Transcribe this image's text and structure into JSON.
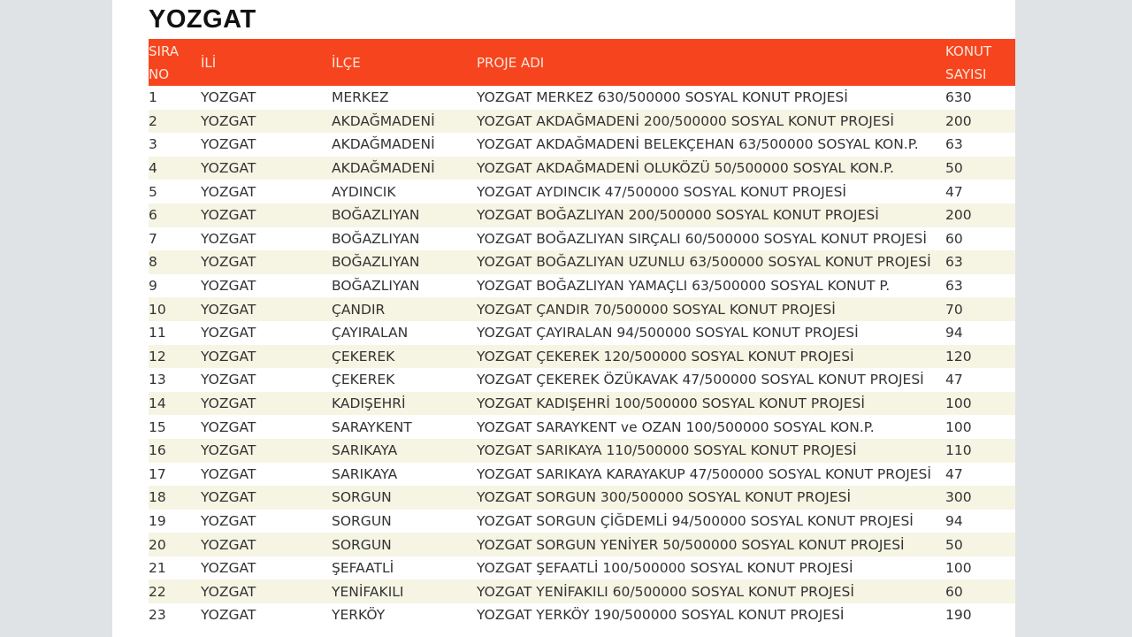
{
  "title": "YOZGAT",
  "colors": {
    "header_bg": "#f6451e",
    "stripe": "#f6f5e4"
  },
  "headers": [
    "SIRA NO",
    "İLİ",
    "İLÇE",
    "PROJE ADI",
    "KONUT SAYISI"
  ],
  "rows": [
    [
      "1",
      "YOZGAT",
      "MERKEZ",
      "YOZGAT MERKEZ 630/500000 SOSYAL KONUT PROJESİ",
      "630"
    ],
    [
      "2",
      "YOZGAT",
      "AKDAĞMADENİ",
      "YOZGAT AKDAĞMADENİ 200/500000 SOSYAL KONUT PROJESİ",
      "200"
    ],
    [
      "3",
      "YOZGAT",
      "AKDAĞMADENİ",
      "YOZGAT AKDAĞMADENİ BELEKÇEHAN 63/500000 SOSYAL KON.P.",
      "63"
    ],
    [
      "4",
      "YOZGAT",
      "AKDAĞMADENİ",
      "YOZGAT AKDAĞMADENİ OLUKÖZÜ 50/500000 SOSYAL KON.P.",
      "50"
    ],
    [
      "5",
      "YOZGAT",
      "AYDINCIK",
      "YOZGAT AYDINCIK 47/500000 SOSYAL KONUT PROJESİ",
      "47"
    ],
    [
      "6",
      "YOZGAT",
      "BOĞAZLIYAN",
      "YOZGAT BOĞAZLIYAN 200/500000 SOSYAL KONUT PROJESİ",
      "200"
    ],
    [
      "7",
      "YOZGAT",
      "BOĞAZLIYAN",
      "YOZGAT BOĞAZLIYAN SIRÇALI 60/500000 SOSYAL KONUT PROJESİ",
      "60"
    ],
    [
      "8",
      "YOZGAT",
      "BOĞAZLIYAN",
      "YOZGAT BOĞAZLIYAN UZUNLU 63/500000 SOSYAL KONUT PROJESİ",
      "63"
    ],
    [
      "9",
      "YOZGAT",
      "BOĞAZLIYAN",
      "YOZGAT BOĞAZLIYAN YAMAÇLI 63/500000 SOSYAL KONUT P.",
      "63"
    ],
    [
      "10",
      "YOZGAT",
      "ÇANDIR",
      "YOZGAT ÇANDIR 70/500000 SOSYAL KONUT PROJESİ",
      "70"
    ],
    [
      "11",
      "YOZGAT",
      "ÇAYIRALAN",
      "YOZGAT ÇAYIRALAN 94/500000 SOSYAL KONUT PROJESİ",
      "94"
    ],
    [
      "12",
      "YOZGAT",
      "ÇEKEREK",
      "YOZGAT ÇEKEREK 120/500000 SOSYAL KONUT PROJESİ",
      "120"
    ],
    [
      "13",
      "YOZGAT",
      "ÇEKEREK",
      "YOZGAT ÇEKEREK ÖZÜKAVAK 47/500000 SOSYAL KONUT PROJESİ",
      "47"
    ],
    [
      "14",
      "YOZGAT",
      "KADIŞEHRİ",
      "YOZGAT KADIŞEHRİ 100/500000 SOSYAL KONUT PROJESİ",
      "100"
    ],
    [
      "15",
      "YOZGAT",
      "SARAYKENT",
      "YOZGAT SARAYKENT ve OZAN 100/500000 SOSYAL KON.P.",
      "100"
    ],
    [
      "16",
      "YOZGAT",
      "SARIKAYA",
      "YOZGAT SARIKAYA 110/500000 SOSYAL KONUT PROJESİ",
      "110"
    ],
    [
      "17",
      "YOZGAT",
      "SARIKAYA",
      "YOZGAT SARIKAYA KARAYAKUP 47/500000 SOSYAL KONUT PROJESİ",
      "47"
    ],
    [
      "18",
      "YOZGAT",
      "SORGUN",
      "YOZGAT SORGUN 300/500000 SOSYAL KONUT PROJESİ",
      "300"
    ],
    [
      "19",
      "YOZGAT",
      "SORGUN",
      "YOZGAT SORGUN ÇİĞDEMLİ 94/500000 SOSYAL KONUT PROJESİ",
      "94"
    ],
    [
      "20",
      "YOZGAT",
      "SORGUN",
      "YOZGAT SORGUN YENİYER 50/500000 SOSYAL KONUT PROJESİ",
      "50"
    ],
    [
      "21",
      "YOZGAT",
      "ŞEFAATLİ",
      "YOZGAT ŞEFAATLİ 100/500000 SOSYAL KONUT PROJESİ",
      "100"
    ],
    [
      "22",
      "YOZGAT",
      "YENİFAKILI",
      "YOZGAT YENİFAKILI 60/500000 SOSYAL KONUT PROJESİ",
      "60"
    ],
    [
      "23",
      "YOZGAT",
      "YERKÖY",
      "YOZGAT YERKÖY 190/500000 SOSYAL KONUT PROJESİ",
      "190"
    ]
  ]
}
